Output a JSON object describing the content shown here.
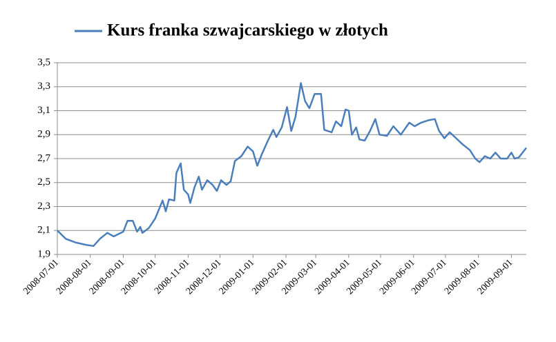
{
  "chart_data": {
    "type": "line",
    "series": [
      {
        "name": "Kurs franka szwajcarskiego w złotych",
        "color": "#4a7ebb",
        "x": [
          "2008-07-01",
          "2008-07-09",
          "2008-07-18",
          "2008-07-28",
          "2008-08-04",
          "2008-08-10",
          "2008-08-17",
          "2008-08-23",
          "2008-09-01",
          "2008-09-05",
          "2008-09-10",
          "2008-09-14",
          "2008-09-17",
          "2008-09-19",
          "2008-09-25",
          "2008-10-01",
          "2008-10-08",
          "2008-10-11",
          "2008-10-14",
          "2008-10-19",
          "2008-10-21",
          "2008-10-25",
          "2008-10-28",
          "2008-11-01",
          "2008-11-03",
          "2008-11-07",
          "2008-11-11",
          "2008-11-14",
          "2008-11-19",
          "2008-11-24",
          "2008-11-28",
          "2008-12-02",
          "2008-12-07",
          "2008-12-11",
          "2008-12-15",
          "2008-12-21",
          "2008-12-27",
          "2009-01-01",
          "2009-01-05",
          "2009-01-09",
          "2009-01-15",
          "2009-01-20",
          "2009-01-23",
          "2009-01-28",
          "2009-02-02",
          "2009-02-06",
          "2009-02-10",
          "2009-02-15",
          "2009-02-19",
          "2009-02-23",
          "2009-02-28",
          "2009-03-06",
          "2009-03-09",
          "2009-03-16",
          "2009-03-20",
          "2009-03-25",
          "2009-03-29",
          "2009-04-01",
          "2009-04-04",
          "2009-04-08",
          "2009-04-11",
          "2009-04-16",
          "2009-04-21",
          "2009-04-26",
          "2009-04-30",
          "2009-05-07",
          "2009-05-13",
          "2009-05-20",
          "2009-05-28",
          "2009-06-02",
          "2009-06-08",
          "2009-06-15",
          "2009-06-21",
          "2009-06-25",
          "2009-06-30",
          "2009-07-05",
          "2009-07-11",
          "2009-07-17",
          "2009-07-24",
          "2009-07-29",
          "2009-08-02",
          "2009-08-07",
          "2009-08-12",
          "2009-08-17",
          "2009-08-22",
          "2009-08-28",
          "2009-09-01",
          "2009-09-04",
          "2009-09-08",
          "2009-09-15"
        ],
        "values": [
          2.1,
          2.03,
          2.0,
          1.98,
          1.97,
          2.03,
          2.08,
          2.05,
          2.09,
          2.18,
          2.18,
          2.09,
          2.13,
          2.08,
          2.12,
          2.2,
          2.35,
          2.26,
          2.36,
          2.35,
          2.58,
          2.66,
          2.44,
          2.4,
          2.33,
          2.46,
          2.55,
          2.44,
          2.52,
          2.48,
          2.43,
          2.52,
          2.48,
          2.51,
          2.68,
          2.72,
          2.8,
          2.76,
          2.64,
          2.73,
          2.85,
          2.94,
          2.88,
          2.96,
          3.13,
          2.93,
          3.05,
          3.33,
          3.18,
          3.12,
          3.24,
          3.24,
          2.94,
          2.92,
          3.01,
          2.97,
          3.11,
          3.1,
          2.9,
          2.96,
          2.86,
          2.85,
          2.93,
          3.03,
          2.9,
          2.89,
          2.97,
          2.9,
          3.0,
          2.97,
          3.0,
          3.02,
          3.03,
          2.93,
          2.87,
          2.92,
          2.87,
          2.82,
          2.77,
          2.7,
          2.67,
          2.72,
          2.7,
          2.75,
          2.7,
          2.7,
          2.75,
          2.7,
          2.71,
          2.79
        ]
      }
    ],
    "xlim": [
      "2008-07-01",
      "2009-09-15"
    ],
    "xticks": [
      "2008-07-01",
      "2008-08-01",
      "2008-09-01",
      "2008-10-01",
      "2008-11-01",
      "2008-12-01",
      "2009-01-01",
      "2009-02-01",
      "2009-03-01",
      "2009-04-01",
      "2009-05-01",
      "2009-06-01",
      "2009-07-01",
      "2009-08-01",
      "2009-09-01"
    ],
    "ylim": [
      1.9,
      3.5
    ],
    "yticks": [
      {
        "value": 1.9,
        "label": "1,9"
      },
      {
        "value": 2.1,
        "label": "2,1"
      },
      {
        "value": 2.3,
        "label": "2,3"
      },
      {
        "value": 2.5,
        "label": "2,5"
      },
      {
        "value": 2.7,
        "label": "2,7"
      },
      {
        "value": 2.9,
        "label": "2,9"
      },
      {
        "value": 3.1,
        "label": "3,1"
      },
      {
        "value": 3.3,
        "label": "3,3"
      },
      {
        "value": 3.5,
        "label": "3,5"
      }
    ],
    "grid": true,
    "legend": "top"
  }
}
